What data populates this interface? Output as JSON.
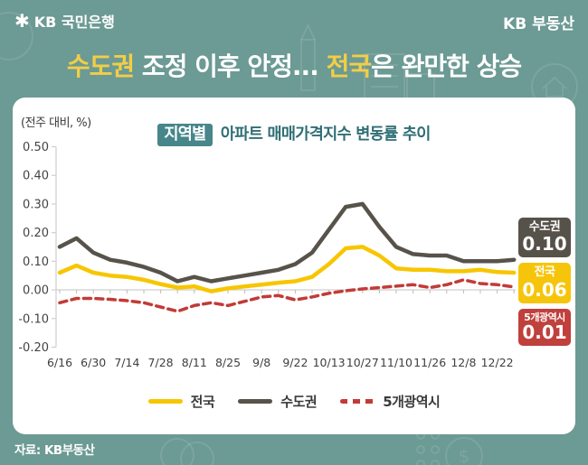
{
  "header": {
    "logo_symbol": "✱",
    "logo_text": "KB 국민은행",
    "brand": "KB 부동산"
  },
  "title": {
    "part1": "수도권",
    "part2": " 조정 이후 안정... ",
    "part3": "전국",
    "part4": "은 완만한 상승"
  },
  "chart_data": {
    "type": "line",
    "title_badge": "지역별",
    "title_rest": " 아파트 매매가격지수 변동률 추이",
    "axis_note": "(전주 대비, %)",
    "ylabel": "(전주 대비, %)",
    "ylim": [
      -0.2,
      0.5
    ],
    "grid": "zero-line only",
    "legend_position": "bottom",
    "y_ticks": [
      "0.50",
      "0.40",
      "0.30",
      "0.20",
      "0.10",
      "0.00",
      "-0.10",
      "-0.20"
    ],
    "x_labels": [
      "6/16",
      "6/30",
      "7/14",
      "7/28",
      "8/11",
      "8/25",
      "9/8",
      "9/22",
      "10/13",
      "10/27",
      "11/10",
      "11/26",
      "12/8",
      "12/22"
    ],
    "label_every": 2,
    "n_points": 28,
    "series": [
      {
        "name": "전국",
        "color": "#F7C600",
        "style": "solid",
        "end_label": "0.06",
        "values": [
          0.06,
          0.085,
          0.06,
          0.05,
          0.045,
          0.035,
          0.02,
          0.008,
          0.012,
          -0.005,
          0.005,
          0.012,
          0.018,
          0.025,
          0.03,
          0.045,
          0.09,
          0.145,
          0.15,
          0.12,
          0.075,
          0.07,
          0.07,
          0.065,
          0.065,
          0.07,
          0.062,
          0.06
        ]
      },
      {
        "name": "수도권",
        "color": "#57534B",
        "style": "solid",
        "end_label": "0.10",
        "values": [
          0.15,
          0.18,
          0.13,
          0.105,
          0.095,
          0.08,
          0.06,
          0.03,
          0.045,
          0.03,
          0.04,
          0.05,
          0.06,
          0.07,
          0.09,
          0.13,
          0.21,
          0.29,
          0.3,
          0.22,
          0.15,
          0.125,
          0.12,
          0.12,
          0.1,
          0.1,
          0.1,
          0.105
        ]
      },
      {
        "name": "5개광역시",
        "color": "#C23B38",
        "style": "dashed",
        "end_label": "0.01",
        "values": [
          -0.045,
          -0.03,
          -0.03,
          -0.033,
          -0.038,
          -0.045,
          -0.06,
          -0.075,
          -0.055,
          -0.045,
          -0.055,
          -0.04,
          -0.025,
          -0.02,
          -0.035,
          -0.025,
          -0.012,
          -0.003,
          0.003,
          0.008,
          0.013,
          0.018,
          0.008,
          0.018,
          0.035,
          0.022,
          0.018,
          0.01
        ]
      }
    ]
  },
  "side_badges": [
    {
      "label": "수도권",
      "value": "0.10",
      "bg": "#56524A"
    },
    {
      "label": "전국",
      "value": "0.06",
      "bg": "#F6C50B"
    },
    {
      "label": "5개광역시",
      "value": "0.01",
      "bg": "#C0403C"
    }
  ],
  "footer": {
    "source": "자료: KB부동산"
  },
  "colors": {
    "background": "#6C9A94",
    "card": "#FFFFFF",
    "title_highlight": "#F2CE46",
    "chart_title_text": "#2F6E74",
    "chart_title_badge_bg": "#47868A",
    "axis_gray": "#CFCFCF"
  }
}
